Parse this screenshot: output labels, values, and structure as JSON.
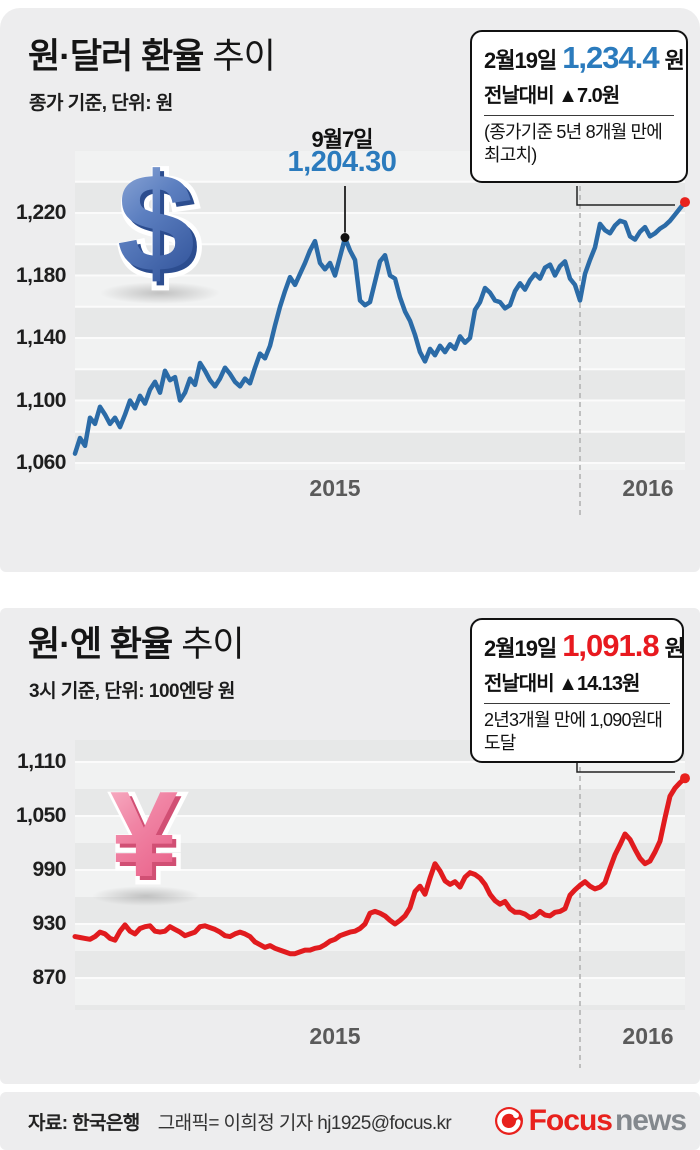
{
  "charts": [
    {
      "title_strong": "원·달러 환율",
      "title_light": "추이",
      "subtitle": "종가 기준, 단위: 원",
      "icon_glyph": "$",
      "callout": {
        "date": "2월19일",
        "value": "1,234.4",
        "unit": "원",
        "change": "전날대비 ▲7.0원",
        "note_line1": "(종가기준 5년 8개월 만에",
        "note_line2": "최고치)"
      },
      "annotation": {
        "label": "9월7일",
        "value": "1,204.30"
      }
    },
    {
      "title_strong": "원·엔 환율",
      "title_light": "추이",
      "subtitle": "3시 기준, 단위: 100엔당 원",
      "icon_glyph": "¥",
      "callout": {
        "date": "2월19일",
        "value": "1,091.8",
        "unit": "원",
        "change": "전날대비 ▲14.13원",
        "note_line1": "2년3개월 만에 1,090원대",
        "note_line2": "도달"
      }
    }
  ],
  "footer": {
    "source": "자료: 한국은행",
    "credit": "그래픽= 이희정 기자 hj1925@focus.kr",
    "logo_focus": "Focus",
    "logo_news": "news"
  },
  "colors": {
    "usd_line": "#2b6ba7",
    "usd_value": "#2b7bbd",
    "yen_line": "#e11b1e",
    "yen_value": "#e8191f",
    "dot_red": "#e8211d",
    "band_dark": "#e7e8e8",
    "band_light": "#f1f2f2"
  },
  "chart_data": [
    {
      "type": "line",
      "title": "원·달러 환율 추이",
      "unit": "원 (종가 기준)",
      "ylim": [
        1060,
        1240
      ],
      "y_ticks": [
        1220,
        1180,
        1140,
        1100,
        1060
      ],
      "y_tick_labels": [
        "1,220",
        "1,180",
        "1,140",
        "1,100",
        "1,060"
      ],
      "x_tick_labels": [
        "2015",
        "2016"
      ],
      "annotations": [
        {
          "label": "9월7일",
          "value": 1204.3,
          "index": 54
        }
      ],
      "end_point": {
        "date": "2월19일",
        "value": 1234.4,
        "change": 7.0
      },
      "values": [
        1066,
        1076,
        1071,
        1089,
        1085,
        1096,
        1091,
        1085,
        1089,
        1083,
        1091,
        1100,
        1095,
        1103,
        1098,
        1107,
        1112,
        1105,
        1119,
        1113,
        1115,
        1100,
        1105,
        1114,
        1110,
        1124,
        1119,
        1113,
        1109,
        1114,
        1121,
        1117,
        1112,
        1109,
        1114,
        1111,
        1121,
        1130,
        1127,
        1135,
        1148,
        1160,
        1170,
        1179,
        1174,
        1181,
        1188,
        1196,
        1202,
        1188,
        1184,
        1188,
        1180,
        1192,
        1204,
        1196,
        1190,
        1164,
        1161,
        1163,
        1176,
        1189,
        1193,
        1180,
        1178,
        1166,
        1157,
        1151,
        1142,
        1131,
        1125,
        1133,
        1129,
        1135,
        1131,
        1136,
        1133,
        1141,
        1137,
        1140,
        1158,
        1163,
        1172,
        1169,
        1164,
        1163,
        1159,
        1161,
        1170,
        1175,
        1171,
        1177,
        1181,
        1178,
        1185,
        1187,
        1180,
        1186,
        1189,
        1178,
        1174,
        1164,
        1181,
        1190,
        1198,
        1213,
        1209,
        1207,
        1212,
        1215,
        1214,
        1205,
        1203,
        1208,
        1211,
        1205,
        1207,
        1210,
        1212,
        1215,
        1219,
        1223,
        1227
      ]
    },
    {
      "type": "line",
      "title": "원·엔 환율 추이",
      "unit": "100엔당 원 (3시 기준)",
      "ylim": [
        870,
        1110
      ],
      "y_ticks": [
        1110,
        1050,
        990,
        930,
        870
      ],
      "y_tick_labels": [
        "1,110",
        "1,050",
        "990",
        "930",
        "870"
      ],
      "x_tick_labels": [
        "2015",
        "2016"
      ],
      "annotations": [],
      "end_point": {
        "date": "2월19일",
        "value": 1091.8,
        "change": 14.13
      },
      "values": [
        916,
        915,
        914,
        913,
        916,
        921,
        919,
        914,
        912,
        922,
        929,
        922,
        919,
        925,
        927,
        928,
        922,
        921,
        922,
        927,
        924,
        921,
        917,
        919,
        921,
        927,
        928,
        926,
        924,
        921,
        917,
        916,
        919,
        921,
        919,
        916,
        910,
        907,
        904,
        906,
        903,
        901,
        899,
        897,
        897,
        899,
        901,
        901,
        903,
        904,
        907,
        911,
        913,
        917,
        919,
        921,
        922,
        925,
        930,
        942,
        944,
        942,
        939,
        934,
        930,
        934,
        939,
        948,
        966,
        972,
        963,
        981,
        997,
        989,
        978,
        974,
        977,
        971,
        982,
        987,
        985,
        981,
        974,
        963,
        956,
        952,
        955,
        947,
        943,
        943,
        941,
        937,
        939,
        944,
        940,
        939,
        943,
        944,
        947,
        962,
        968,
        973,
        977,
        972,
        969,
        971,
        976,
        992,
        1007,
        1018,
        1030,
        1024,
        1013,
        1003,
        997,
        1000,
        1010,
        1022,
        1048,
        1072,
        1081,
        1087,
        1092
      ]
    }
  ]
}
